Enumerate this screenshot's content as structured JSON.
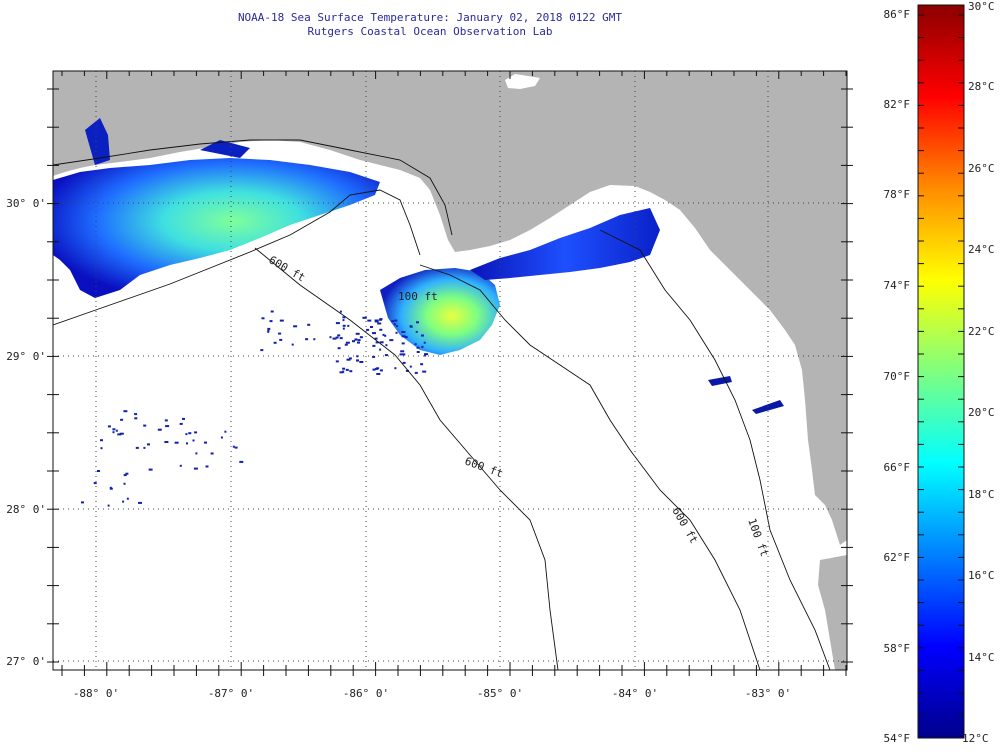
{
  "title": {
    "line1": "NOAA-18 Sea Surface Temperature:  January 02, 2018 0122 GMT",
    "line2": "Rutgers Coastal Ocean Observation Lab"
  },
  "map": {
    "lon_labels": [
      "-88° 0'",
      "-87° 0'",
      "-86° 0'",
      "-85° 0'",
      "-84° 0'",
      "-83° 0'"
    ],
    "lat_labels": [
      "30° 0'",
      "29° 0'",
      "28° 0'",
      "27° 0'"
    ],
    "contour_labels": [
      "600 ft",
      "600 ft",
      "100 ft",
      "600 ft",
      "100 ft"
    ],
    "colors": {
      "land": "#b4b4b4",
      "ocean": "#ffffff",
      "grid": "#333333"
    }
  },
  "colorbar": {
    "fahrenheit_labels": [
      "86°F",
      "82°F",
      "78°F",
      "74°F",
      "70°F",
      "66°F",
      "62°F",
      "58°F",
      "54°F"
    ],
    "celsius_labels": [
      "30°C",
      "28°C",
      "26°C",
      "24°C",
      "22°C",
      "20°C",
      "18°C",
      "16°C",
      "14°C",
      "12°C"
    ],
    "color_stops": [
      "#8b0000",
      "#ff0000",
      "#ff8c00",
      "#ffff00",
      "#7fff7f",
      "#00ffff",
      "#0080ff",
      "#0000ff",
      "#00008b"
    ]
  }
}
